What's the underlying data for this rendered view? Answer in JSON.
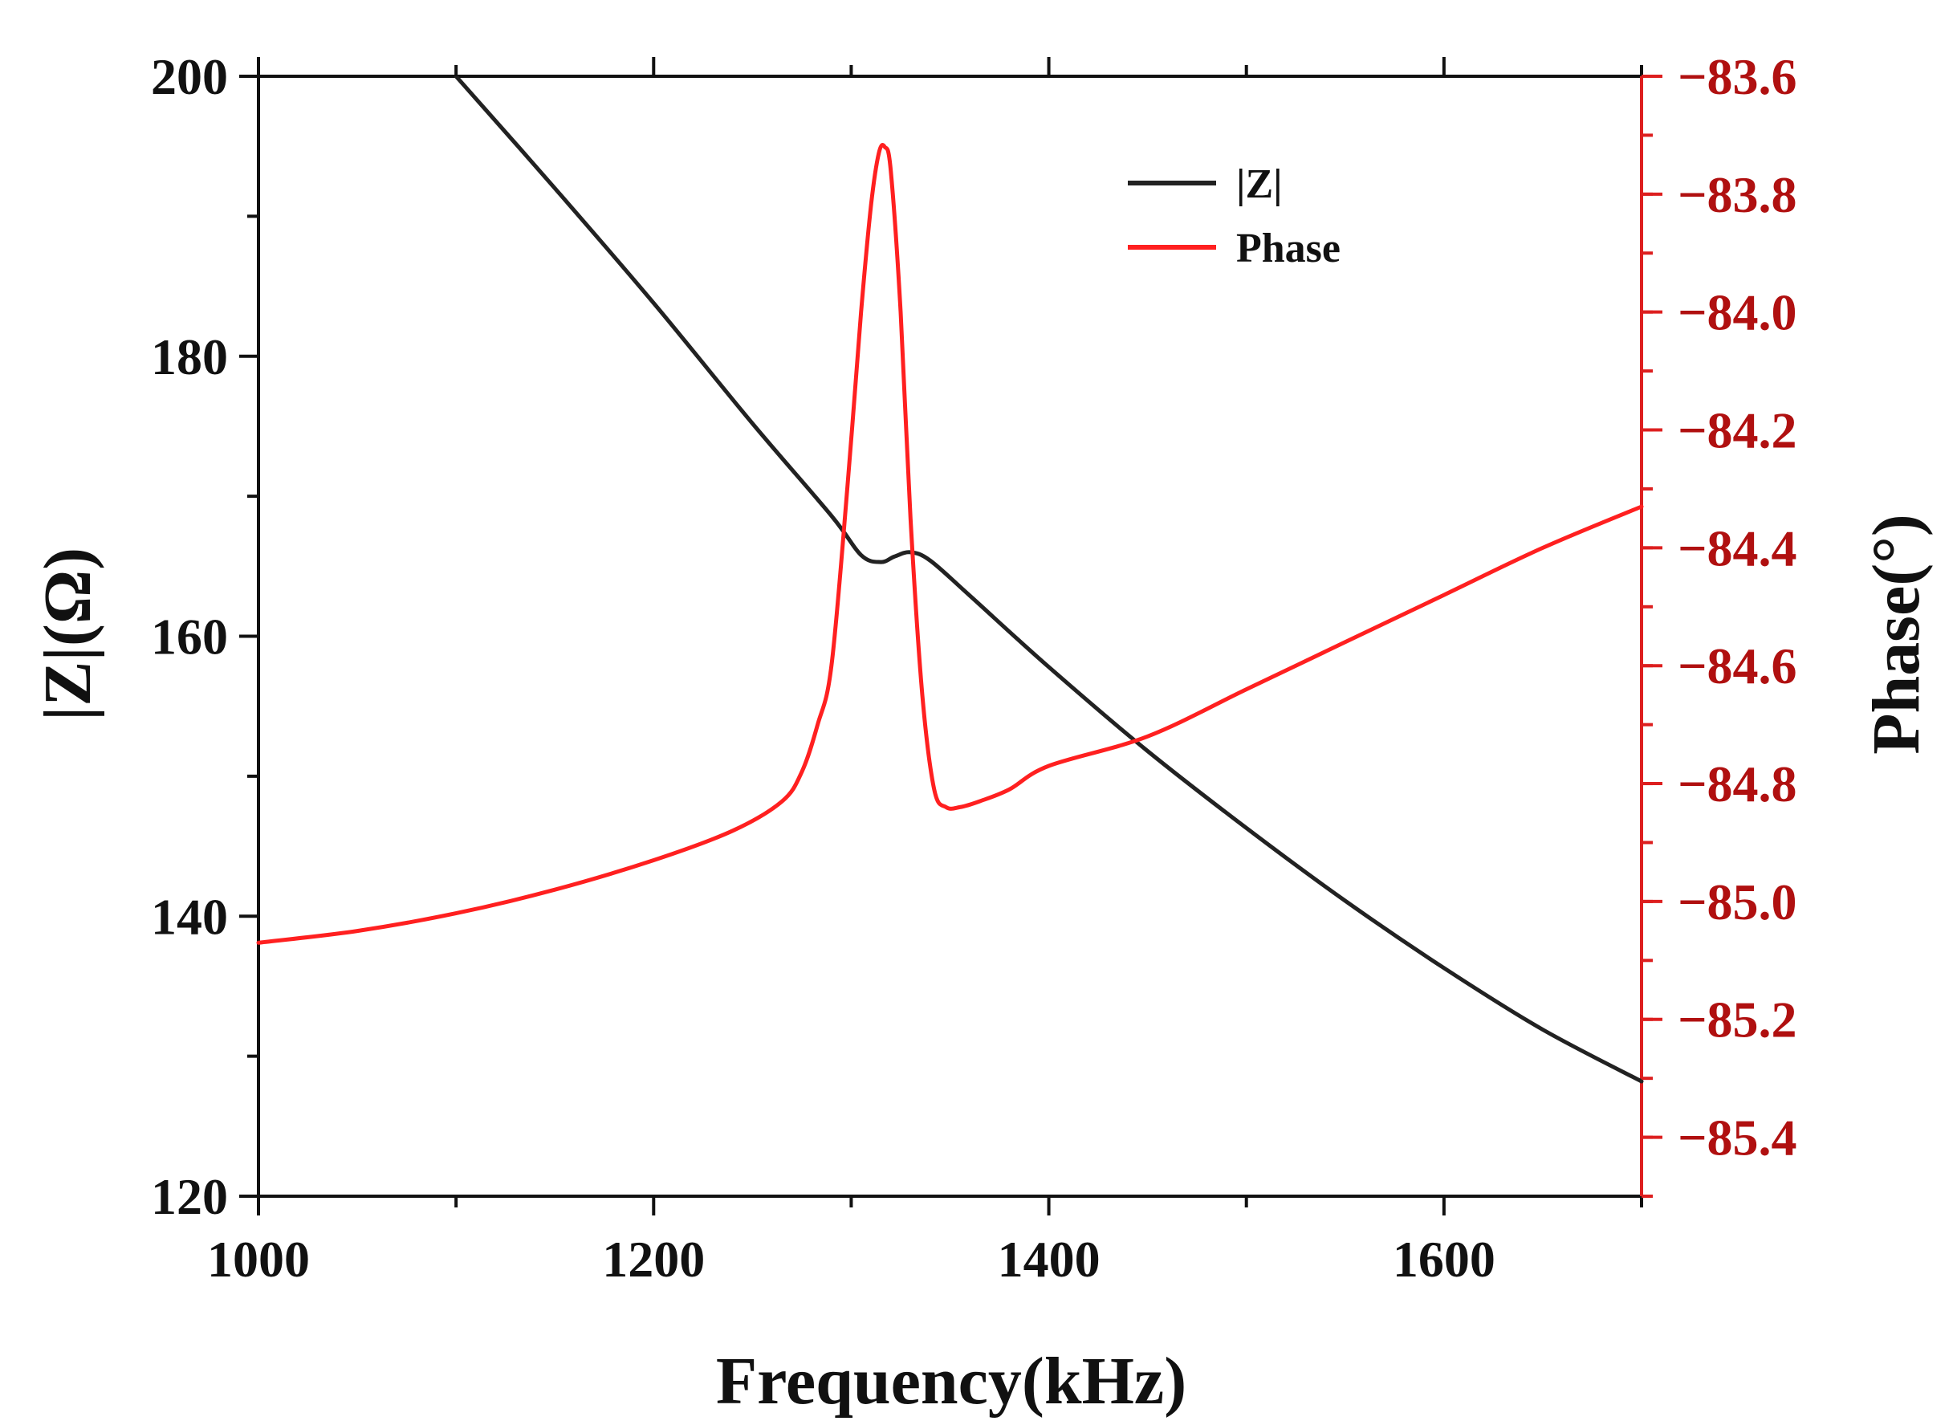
{
  "chart_data": {
    "type": "line",
    "xlabel": "Frequency(kHz)",
    "ylabel_left": "|Z|(Ω)",
    "ylabel_right": "Phase(°)",
    "xlim": [
      1000,
      1700
    ],
    "ylim_left": [
      120,
      200
    ],
    "ylim_right": [
      -85.5,
      -83.6
    ],
    "x_ticks": [
      1000,
      1200,
      1400,
      1600
    ],
    "y_ticks_left": [
      120,
      140,
      160,
      180,
      200
    ],
    "y_ticks_right": [
      -85.4,
      -85.2,
      -85.0,
      -84.8,
      -84.6,
      -84.4,
      -84.2,
      -84.0,
      -83.8,
      -83.6
    ],
    "x_tick_labels": [
      "1000",
      "1200",
      "1400",
      "1600"
    ],
    "y_tick_labels_left": [
      "120",
      "140",
      "160",
      "180",
      "200"
    ],
    "y_tick_labels_right": [
      "−85.4",
      "−85.2",
      "−85.0",
      "−84.8",
      "−84.6",
      "−84.4",
      "−84.2",
      "−84.0",
      "−83.8",
      "−83.6"
    ],
    "legend_position": "top-center",
    "series": [
      {
        "name": "|Z|",
        "color": "#222222",
        "axis": "left",
        "x": [
          1100,
          1150,
          1200,
          1250,
          1290,
          1305,
          1315,
          1322,
          1330,
          1340,
          1360,
          1400,
          1450,
          1500,
          1550,
          1600,
          1650,
          1700
        ],
        "y": [
          200,
          192.0,
          183.8,
          175.2,
          168.6,
          165.8,
          165.3,
          165.7,
          166.0,
          165.4,
          162.9,
          157.8,
          151.8,
          146.3,
          141.1,
          136.3,
          131.9,
          128.2
        ]
      },
      {
        "name": "Phase",
        "color": "#ff2020",
        "axis": "right",
        "x": [
          1000,
          1050,
          1100,
          1150,
          1200,
          1240,
          1265,
          1275,
          1283,
          1290,
          1298,
          1305,
          1310,
          1314,
          1317,
          1320,
          1325,
          1330,
          1336,
          1342,
          1348,
          1355,
          1365,
          1380,
          1400,
          1450,
          1500,
          1550,
          1600,
          1650,
          1700
        ],
        "y": [
          -85.07,
          -85.05,
          -85.02,
          -84.98,
          -84.93,
          -84.88,
          -84.83,
          -84.78,
          -84.7,
          -84.6,
          -84.3,
          -84.0,
          -83.82,
          -83.73,
          -83.72,
          -83.76,
          -84.0,
          -84.35,
          -84.65,
          -84.81,
          -84.84,
          -84.84,
          -84.83,
          -84.81,
          -84.77,
          -84.72,
          -84.64,
          -84.56,
          -84.48,
          -84.4,
          -84.33
        ]
      }
    ]
  },
  "colors": {
    "left_axis": "#111111",
    "right_axis": "#dd1f1f",
    "right_tick_text": "#b01010"
  }
}
